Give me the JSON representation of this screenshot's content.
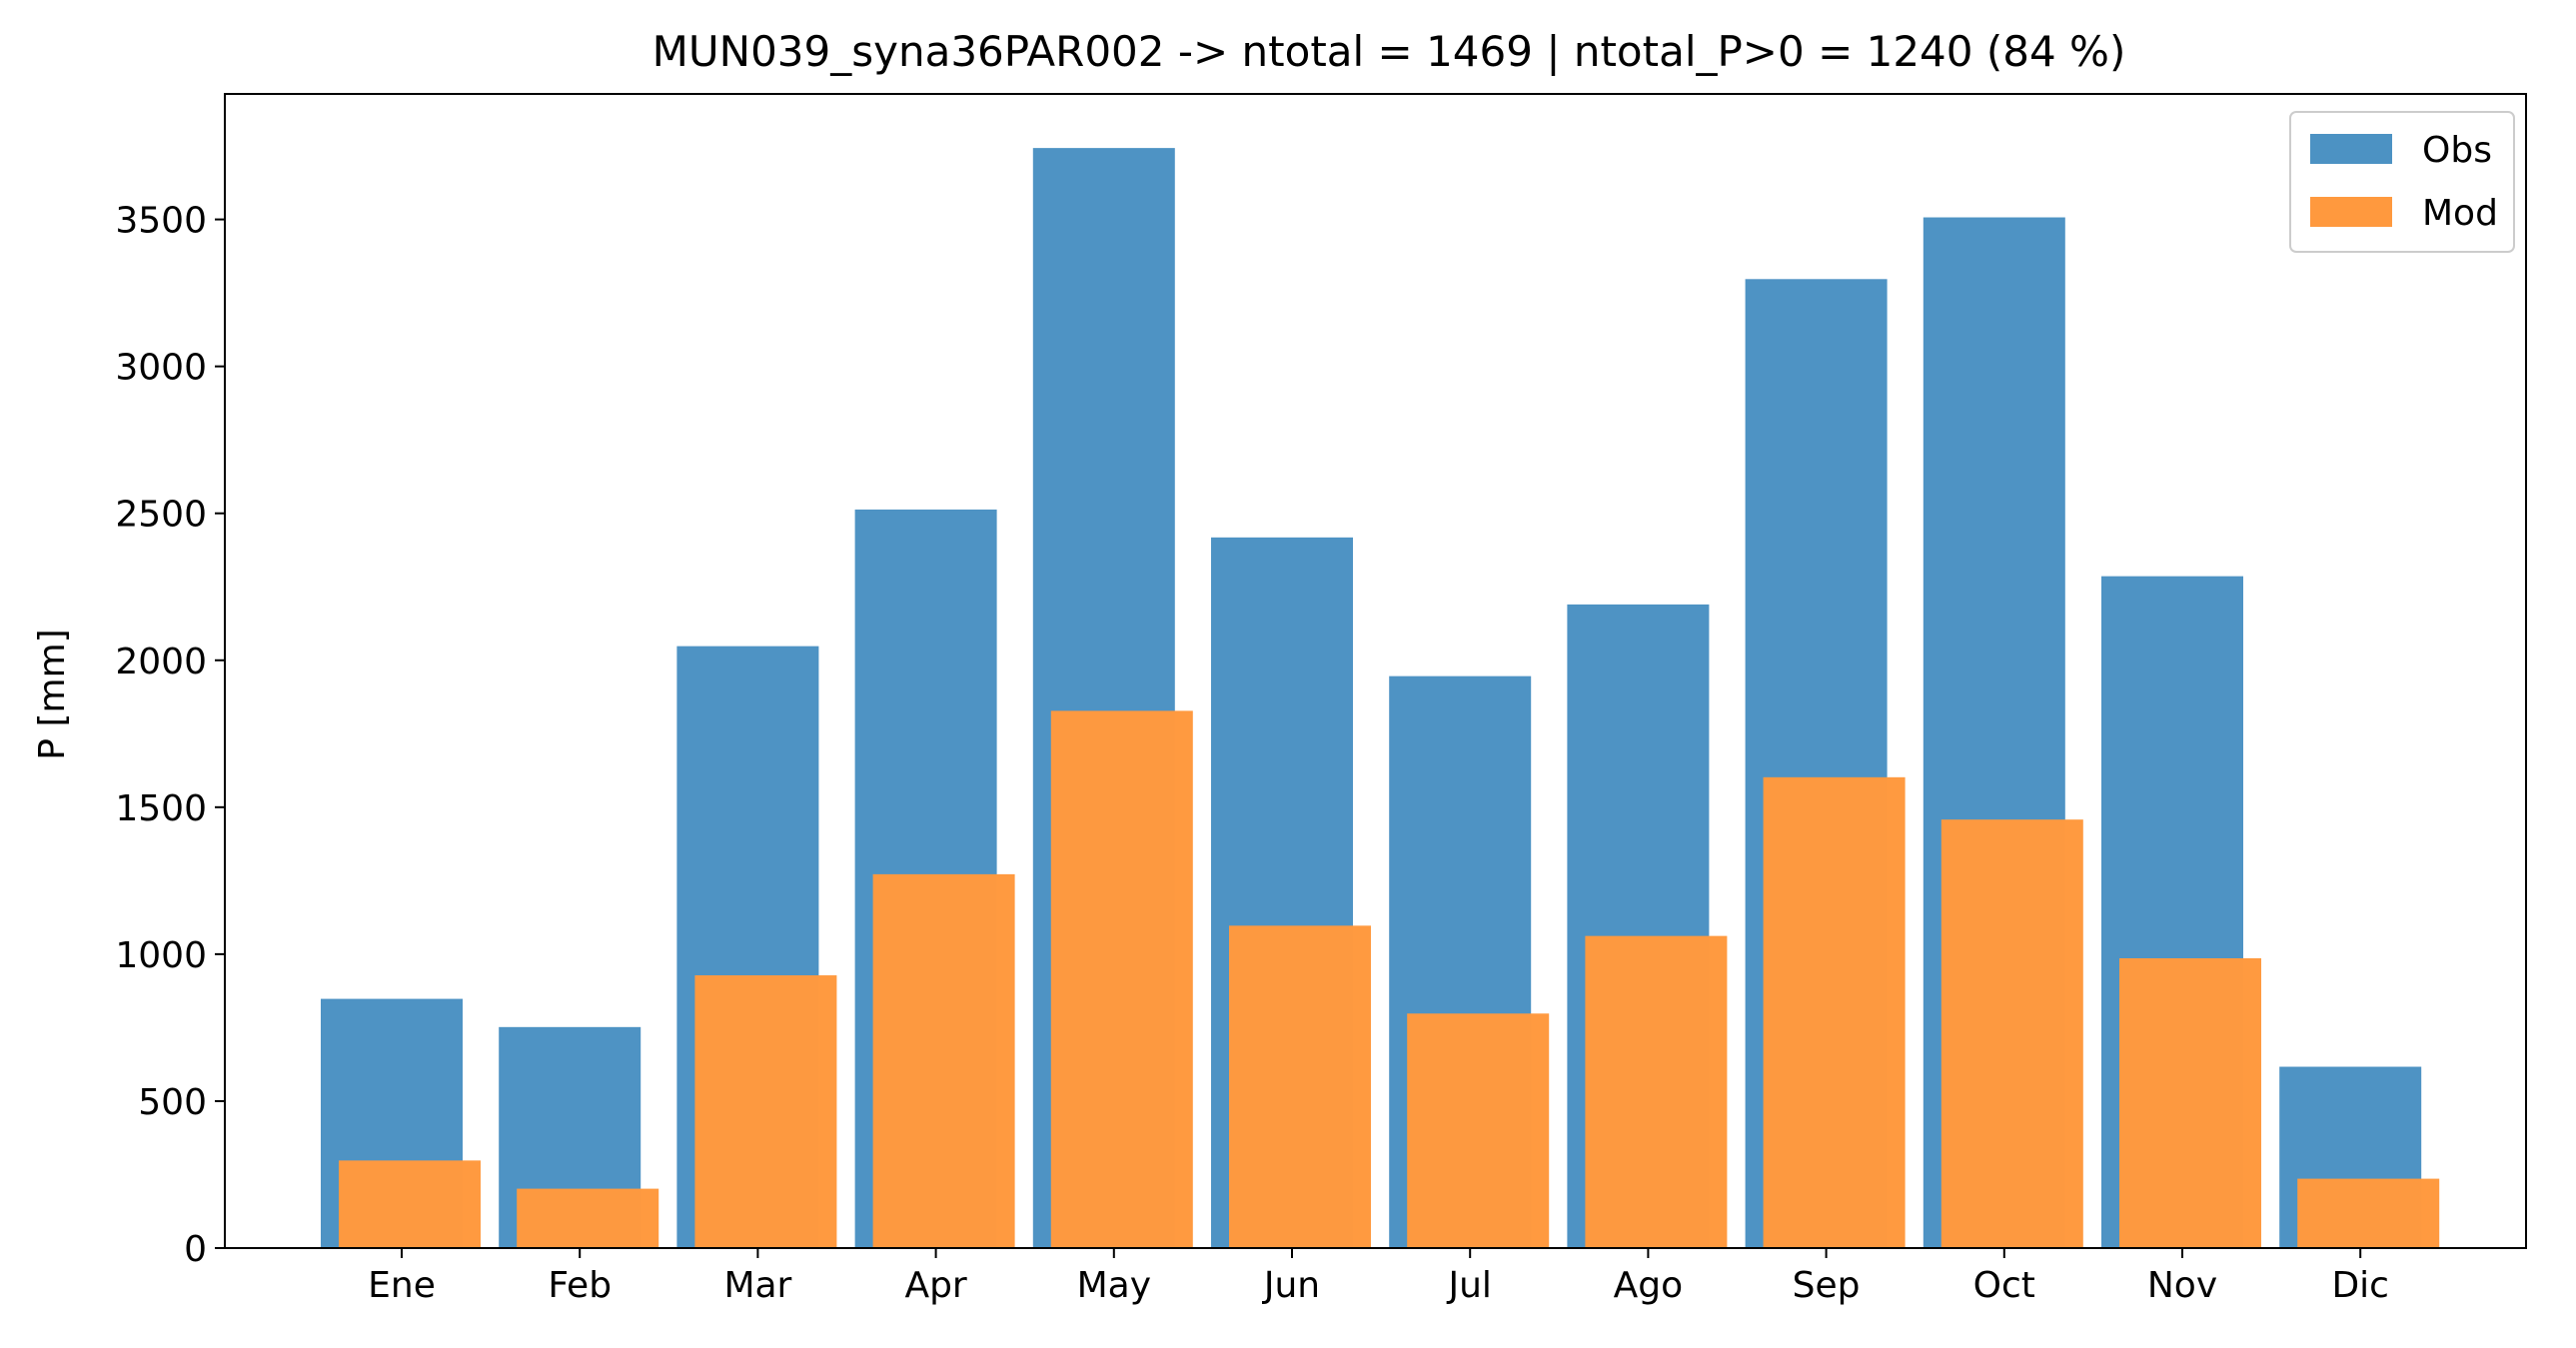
{
  "chart_data": {
    "type": "bar",
    "title": "MUN039_syna36PAR002 -> ntotal = 1469 | ntotal_P>0 = 1240 (84 %)",
    "xlabel": "",
    "ylabel": "P [mm]",
    "categories": [
      "Ene",
      "Feb",
      "Mar",
      "Apr",
      "May",
      "Jun",
      "Jul",
      "Ago",
      "Sep",
      "Oct",
      "Nov",
      "Dic"
    ],
    "series": [
      {
        "name": "Obs",
        "color": "#4c92c3",
        "values": [
          848,
          752,
          2048,
          2513,
          3743,
          2418,
          1946,
          2190,
          3297,
          3507,
          2286,
          617
        ]
      },
      {
        "name": "Mod",
        "color": "#ff993e",
        "values": [
          298,
          202,
          928,
          1272,
          1828,
          1097,
          798,
          1062,
          1602,
          1458,
          986,
          236
        ]
      }
    ],
    "ylim": [
      0,
      3927
    ],
    "yticks": [
      0,
      500,
      1000,
      1500,
      2000,
      2500,
      3000,
      3500
    ],
    "legend": "top-right",
    "grid": false
  }
}
